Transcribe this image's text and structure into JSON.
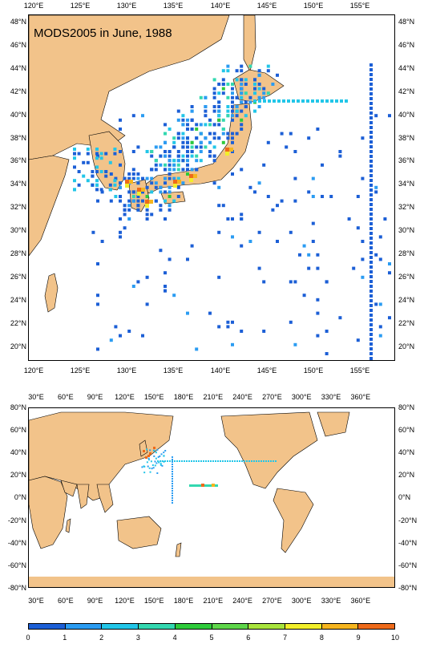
{
  "title": "MODS2005 in June, 1988",
  "map_top": {
    "lon_labels": [
      "120°E",
      "125°E",
      "130°E",
      "135°E",
      "140°E",
      "145°E",
      "150°E",
      "155°E"
    ],
    "lat_labels": [
      "48°N",
      "46°N",
      "44°N",
      "42°N",
      "40°N",
      "38°N",
      "36°N",
      "34°N",
      "32°N",
      "30°N",
      "28°N",
      "26°N",
      "24°N",
      "22°N",
      "20°N"
    ]
  },
  "map_bottom": {
    "lon_labels": [
      "30°E",
      "60°E",
      "90°E",
      "120°E",
      "150°E",
      "180°E",
      "210°E",
      "240°E",
      "270°E",
      "300°E",
      "330°E",
      "360°E"
    ],
    "lat_labels": [
      "80°N",
      "60°N",
      "40°N",
      "20°N",
      "0°N",
      "-20°N",
      "-40°N",
      "-60°N",
      "-80°N"
    ]
  },
  "colorbar": {
    "labels": [
      "0",
      "1",
      "2",
      "3",
      "4",
      "5",
      "6",
      "7",
      "8",
      "9",
      "10"
    ],
    "colors": [
      "#1c5fd6",
      "#2b9cf2",
      "#22c6e8",
      "#33d8b0",
      "#2ecb3a",
      "#5ed64a",
      "#a8e43c",
      "#f2ef2a",
      "#f6b51e",
      "#ee6a1a"
    ]
  },
  "colors": {
    "land": "#f2c38a",
    "ocean": "#ffffff"
  }
}
